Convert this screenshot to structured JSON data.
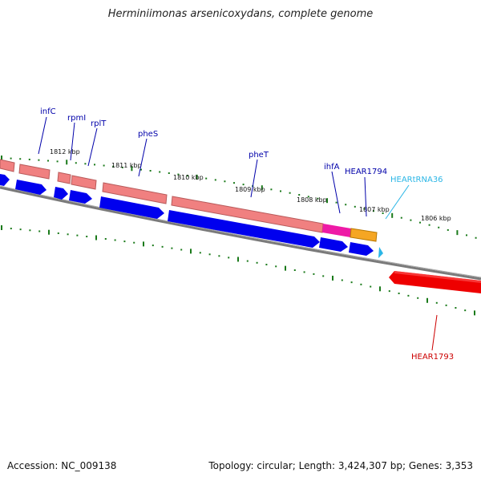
{
  "title": "Herminiimonas arsenicoxydans, complete genome",
  "footer": {
    "accession": "Accession: NC_009138",
    "stats": "Topology: circular; Length: 3,424,307 bp; Genes: 3,353"
  },
  "colors": {
    "forward_gene": "#f08080",
    "forward_gene_dark": "#b85a5a",
    "cds_forward": "#0000ee",
    "cds_reverse": "#ee0000",
    "trna": "#ee1aa6",
    "orange_gene": "#f5a623",
    "tick": "#1a7a1a",
    "backbone": "#777777",
    "label_blue": "#0000aa",
    "label_cyan": "#2bb6e6",
    "label_red": "#cc0000"
  },
  "scale_labels": [
    "1812 kbp",
    "1811 kbp",
    "1810 kbp",
    "1809 kbp",
    "1808 kbp",
    "1807 kbp",
    "1806 kbp"
  ],
  "gene_labels": [
    "infC",
    "rpmI",
    "rplT",
    "pheS",
    "pheT",
    "ihfA",
    "HEAR1794",
    "HEARtRNA36",
    "HEAR1793"
  ]
}
